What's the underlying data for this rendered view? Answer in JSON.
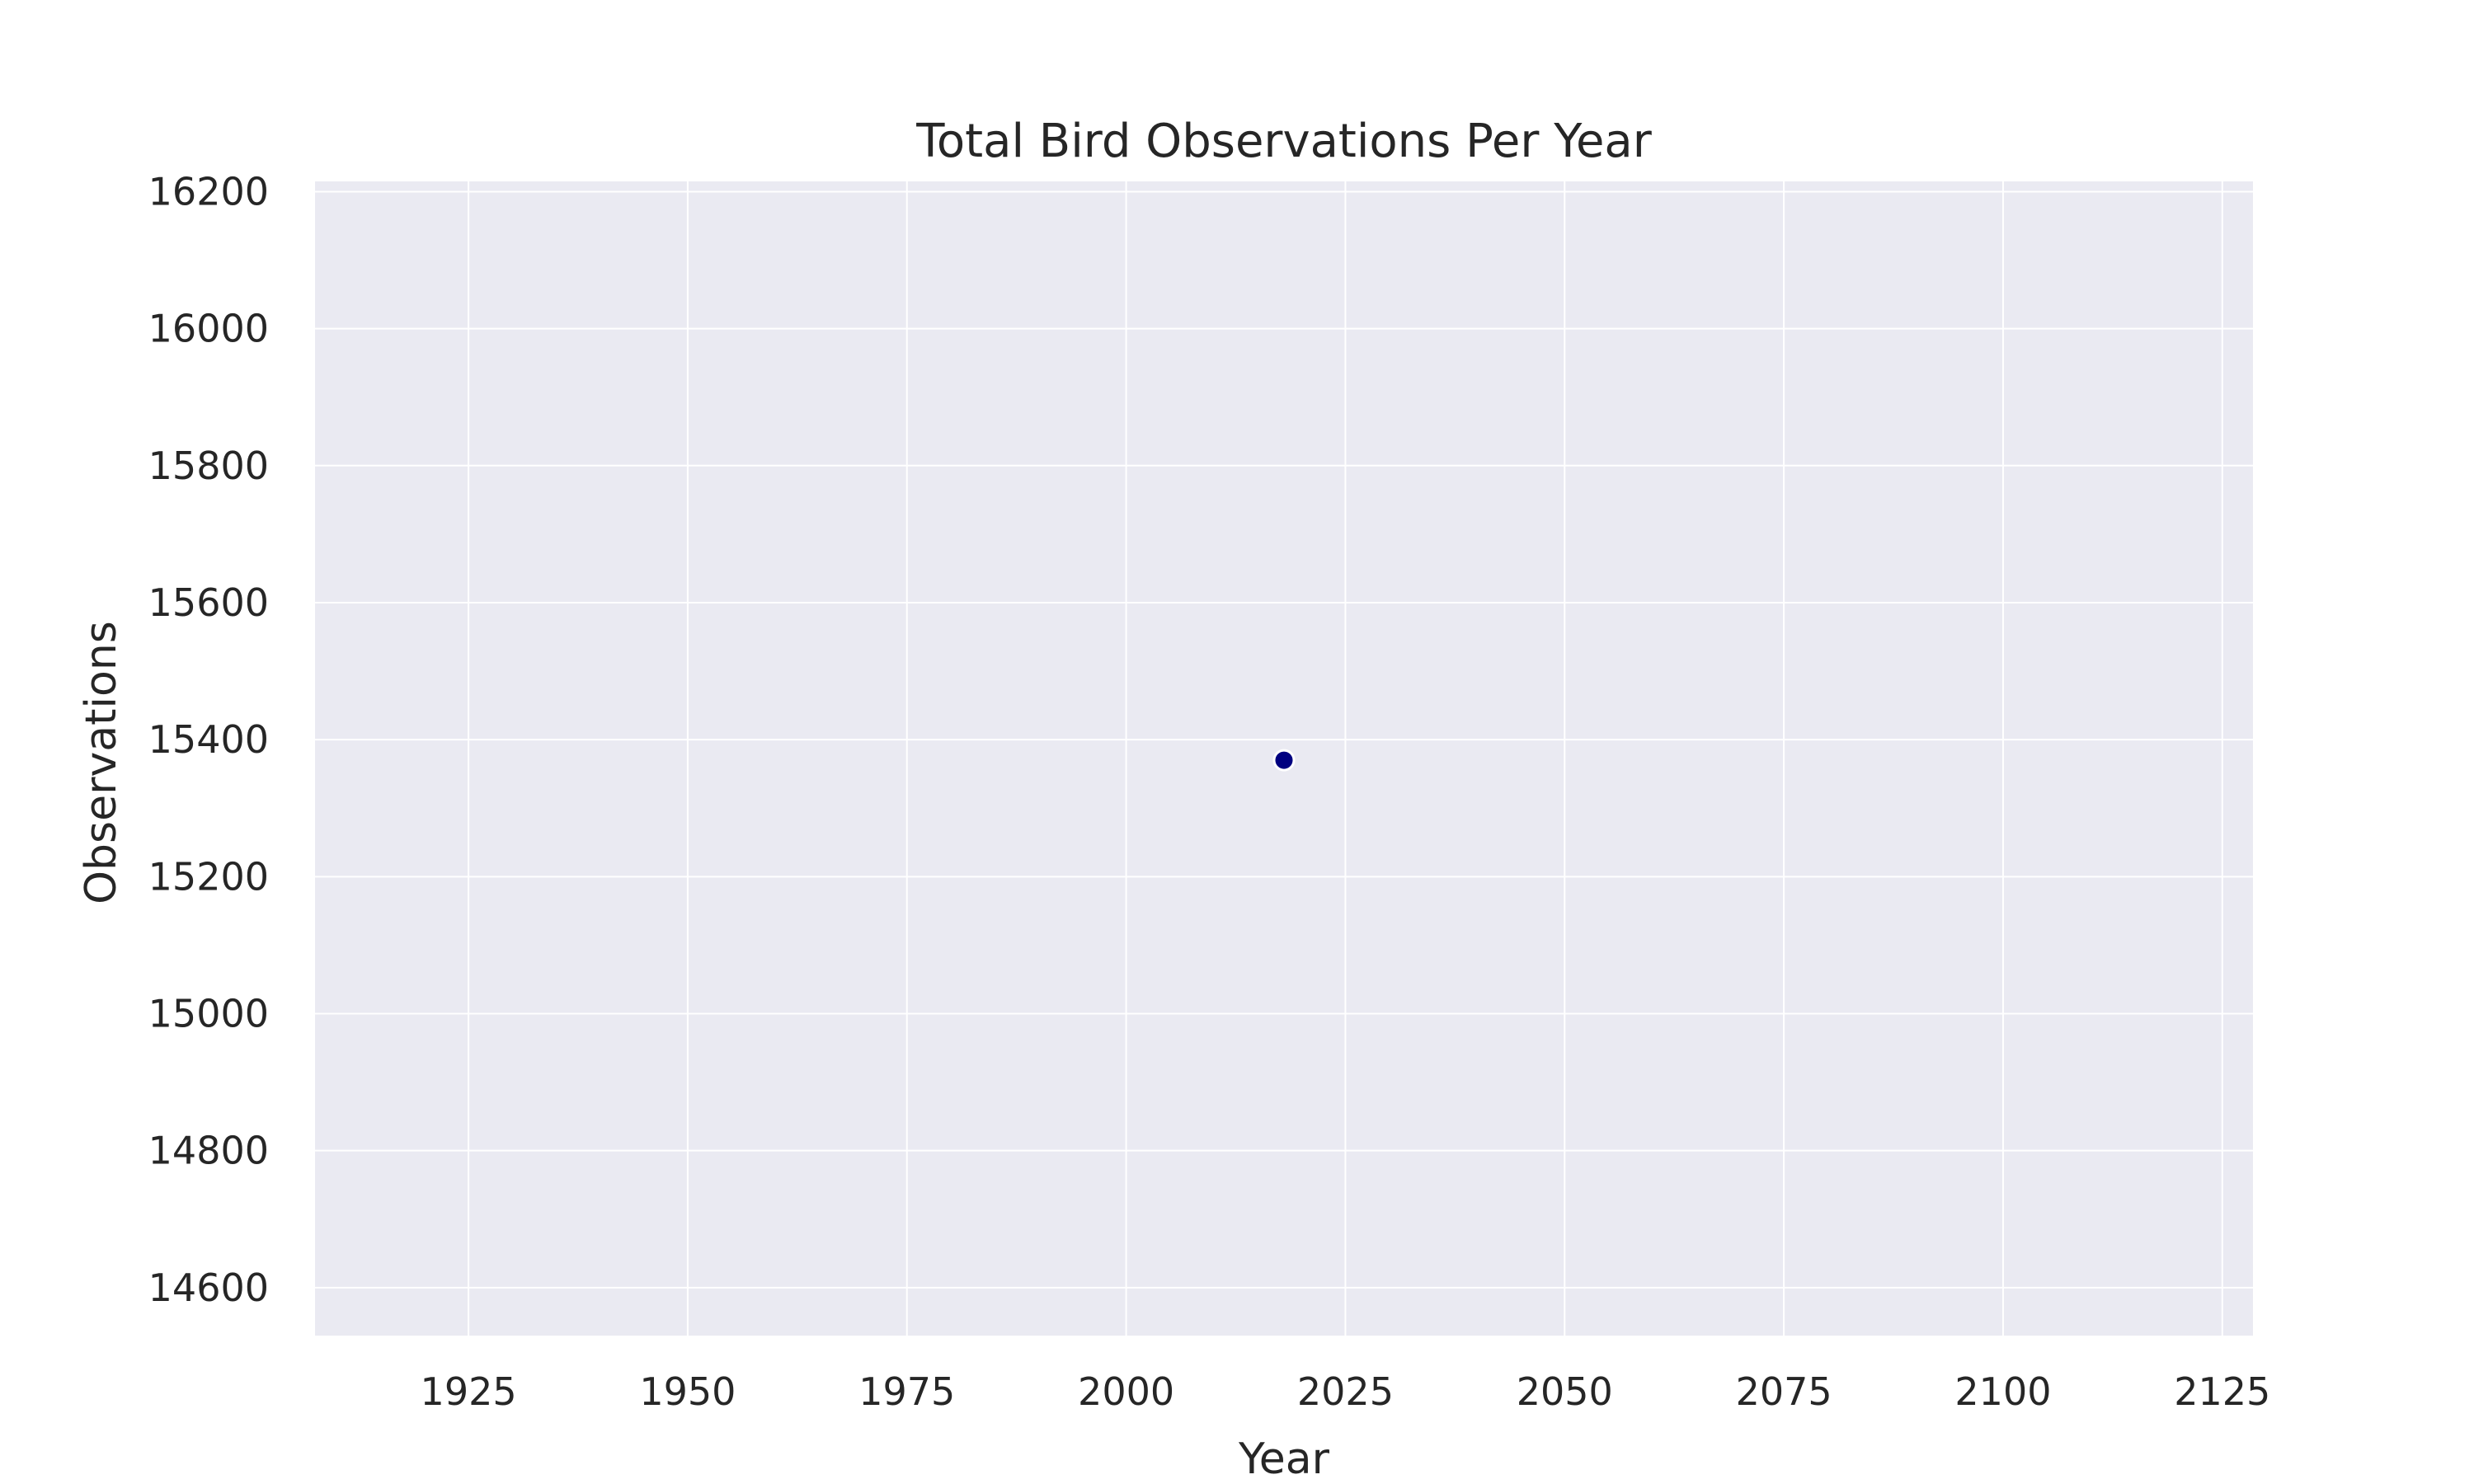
{
  "chart_data": {
    "type": "scatter",
    "title": "Total Bird Observations Per Year",
    "xlabel": "Year",
    "ylabel": "Observations",
    "xlim": [
      1907.5,
      2128.5
    ],
    "ylim": [
      14530,
      16215
    ],
    "xticks": [
      1925,
      1950,
      1975,
      2000,
      2025,
      2050,
      2075,
      2100,
      2125
    ],
    "yticks": [
      14600,
      14800,
      15000,
      15200,
      15400,
      15600,
      15800,
      16000,
      16200
    ],
    "grid": true,
    "points": [
      {
        "x": 2018,
        "y": 15370
      }
    ],
    "colors": {
      "background": "#eaeaf2",
      "grid": "#ffffff",
      "marker": "#000080",
      "marker_edge": "#ffffff"
    }
  }
}
